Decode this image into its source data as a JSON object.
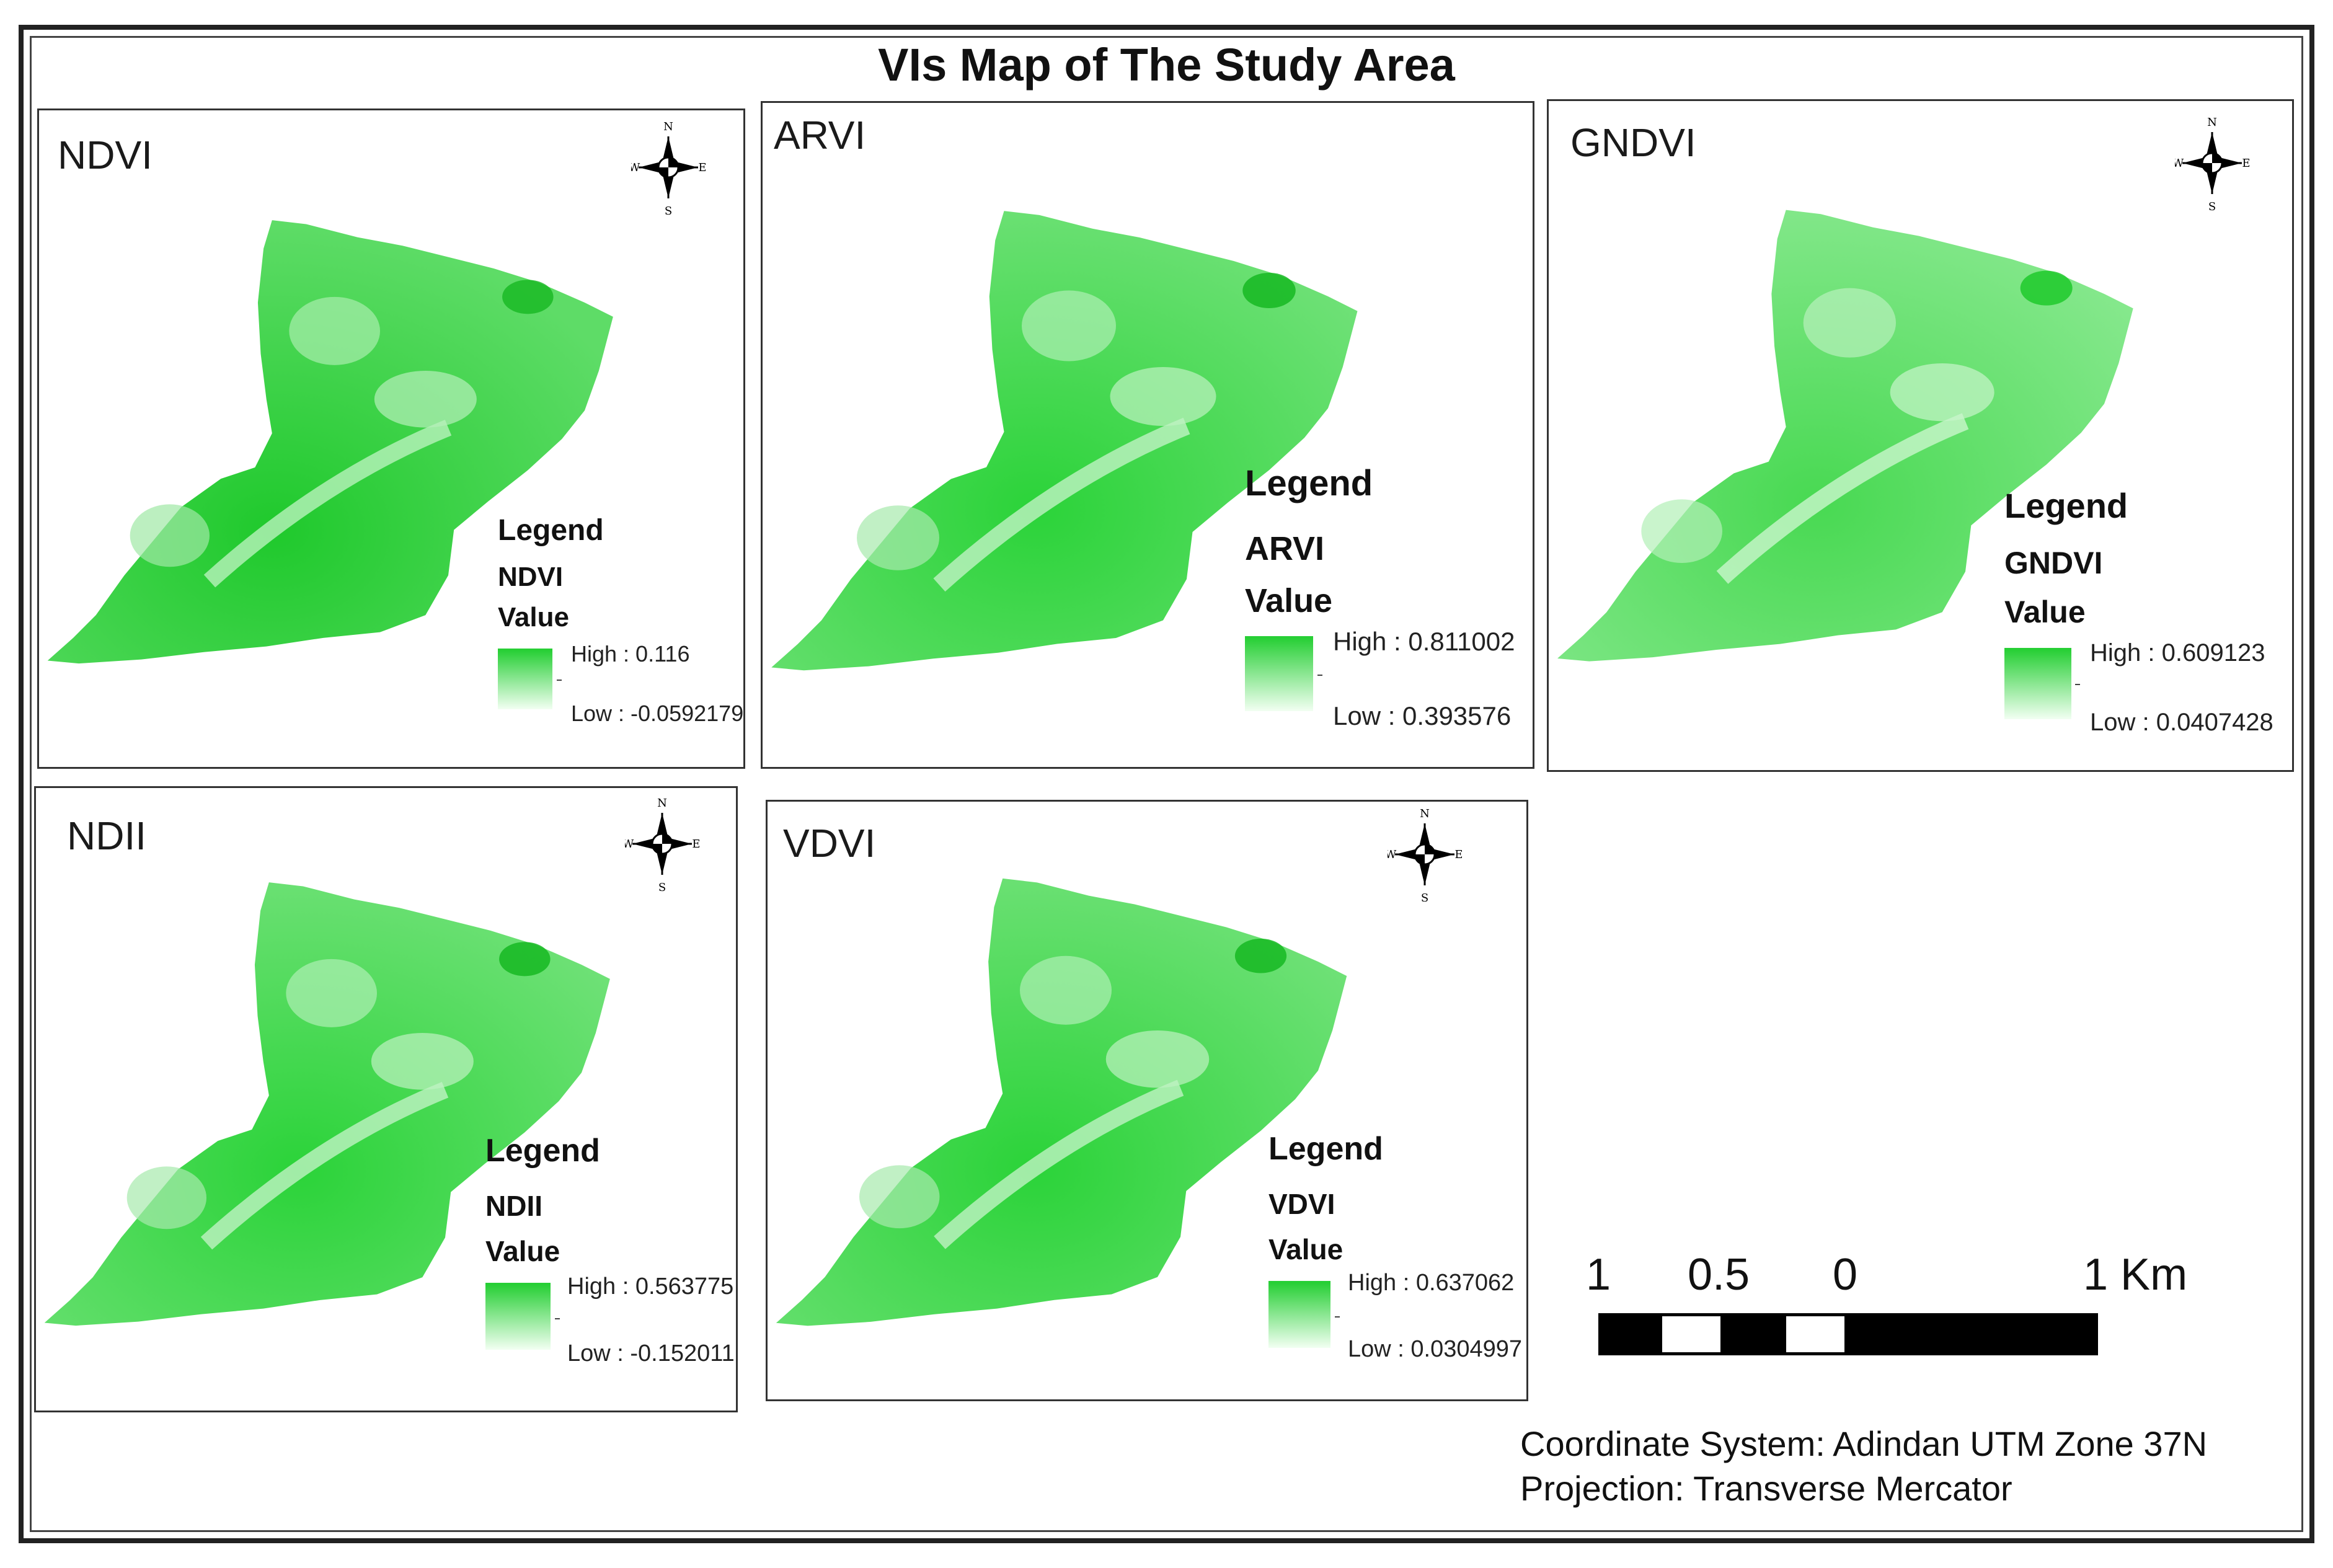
{
  "title": "VIs Map of The Study Area",
  "panels": [
    {
      "label": "NDVI",
      "legend_title": "Legend",
      "layer": "NDVI",
      "value_label": "Value",
      "high": "High : 0.116",
      "low": "Low : -0.0592179",
      "color_high": "#1fc92c",
      "color_low": "#a9f0ae"
    },
    {
      "label": "ARVI",
      "legend_title": "Legend",
      "layer": "ARVI",
      "value_label": "Value",
      "high": "High : 0.811002",
      "low": "Low : 0.393576",
      "color_high": "#2ad638",
      "color_low": "#b3f3b8"
    },
    {
      "label": "GNDVI",
      "legend_title": "Legend",
      "layer": "GNDVI",
      "value_label": "Value",
      "high": "High : 0.609123",
      "low": "Low : 0.0407428",
      "color_high": "#3fdc4a",
      "color_low": "#c4f6c8"
    },
    {
      "label": "NDII",
      "legend_title": "Legend",
      "layer": "NDII",
      "value_label": "Value",
      "high": "High : 0.563775",
      "low": "Low : -0.152011",
      "color_high": "#2ad638",
      "color_low": "#b3f3b8"
    },
    {
      "label": "VDVI",
      "legend_title": "Legend",
      "layer": "VDVI",
      "value_label": "Value",
      "high": "High : 0.637062",
      "low": "Low : 0.0304997",
      "color_high": "#2ad638",
      "color_low": "#b3f3b8"
    }
  ],
  "compass": {
    "n": "N",
    "s": "S",
    "e": "E",
    "w": "W"
  },
  "scalebar": {
    "labels": [
      "1",
      "0.5",
      "0",
      "1 Km"
    ]
  },
  "info": {
    "coordinate_system": "Coordinate System: Adindan UTM Zone 37N",
    "projection": "Projection: Transverse Mercator"
  }
}
